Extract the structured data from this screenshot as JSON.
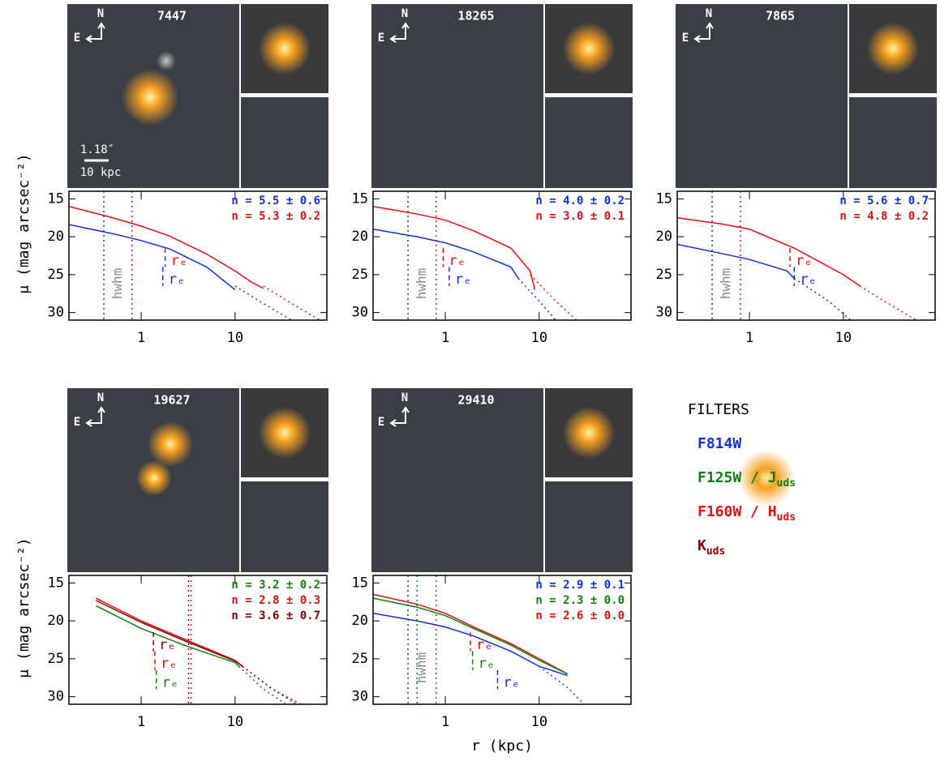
{
  "chart_data": [
    {
      "type": "line",
      "id": "7447",
      "north": "N",
      "east": "E",
      "scale_bar": [
        "1.18″",
        "10 kpc"
      ],
      "ylabel": "μ (mag arcsec⁻²)",
      "xlog": true,
      "xlim": [
        0.17,
        95
      ],
      "ylim": [
        31,
        14
      ],
      "xticks": [
        1,
        10
      ],
      "yticks": [
        15,
        20,
        25,
        30
      ],
      "series": [
        {
          "color": "#e01010",
          "style": "solid",
          "x": [
            0.17,
            0.5,
            1,
            2,
            5,
            10,
            15,
            20
          ],
          "values": [
            16,
            17.5,
            18.6,
            19.9,
            22.3,
            24.5,
            26,
            26.8
          ]
        },
        {
          "color": "#e01010",
          "style": "dotted",
          "x": [
            20,
            40,
            80
          ],
          "values": [
            26.5,
            28.8,
            31
          ]
        },
        {
          "color": "#1030e0",
          "style": "solid",
          "x": [
            0.17,
            0.5,
            1,
            2,
            5,
            10
          ],
          "values": [
            18.4,
            19.6,
            20.5,
            21.6,
            24,
            27
          ]
        },
        {
          "color": "#1030e0",
          "style": "dotted",
          "x": [
            10,
            20,
            40
          ],
          "values": [
            26.5,
            28.8,
            31
          ]
        }
      ],
      "hwhm": [
        {
          "color": "#1030e0",
          "x": 0.4
        },
        {
          "color": "#e01010",
          "x": 0.8
        }
      ],
      "hwhm_label": "hwhm",
      "re": [
        {
          "color": "#e01010",
          "x": 1.8,
          "label": "rₑ"
        },
        {
          "color": "#1030e0",
          "x": 1.7,
          "label": "rₑ"
        }
      ],
      "n_labels": [
        {
          "color": "#1030e0",
          "text": "n = 5.5 ± 0.6"
        },
        {
          "color": "#e01010",
          "text": "n = 5.3 ± 0.2"
        }
      ]
    },
    {
      "type": "line",
      "id": "18265",
      "north": "N",
      "east": "E",
      "xlog": true,
      "xlim": [
        0.17,
        95
      ],
      "ylim": [
        31,
        14
      ],
      "xticks": [
        1,
        10
      ],
      "yticks": [
        15,
        20,
        25,
        30
      ],
      "series": [
        {
          "color": "#e01010",
          "style": "solid",
          "x": [
            0.17,
            0.5,
            1,
            2,
            5,
            8,
            9
          ],
          "values": [
            16,
            17,
            17.8,
            19.2,
            21.5,
            24.5,
            27
          ]
        },
        {
          "color": "#e01010",
          "style": "dotted",
          "x": [
            8,
            15,
            25
          ],
          "values": [
            25,
            28.5,
            31
          ]
        },
        {
          "color": "#1030e0",
          "style": "solid",
          "x": [
            0.17,
            0.5,
            1,
            2,
            5,
            6
          ],
          "values": [
            19,
            20,
            20.8,
            22,
            24,
            25.5
          ]
        },
        {
          "color": "#1030e0",
          "style": "dotted",
          "x": [
            6,
            10,
            15
          ],
          "values": [
            25.5,
            28.5,
            31
          ]
        }
      ],
      "hwhm": [
        {
          "color": "#1030e0",
          "x": 0.4
        },
        {
          "color": "#e01010",
          "x": 0.8
        }
      ],
      "hwhm_label": "hwhm",
      "re": [
        {
          "color": "#e01010",
          "x": 0.95,
          "label": "rₑ"
        },
        {
          "color": "#1030e0",
          "x": 1.1,
          "label": "rₑ"
        }
      ],
      "n_labels": [
        {
          "color": "#1030e0",
          "text": "n = 4.0 ± 0.2"
        },
        {
          "color": "#e01010",
          "text": "n = 3.0 ± 0.1"
        }
      ]
    },
    {
      "type": "line",
      "id": "7865",
      "north": "N",
      "east": "E",
      "xlog": true,
      "xlim": [
        0.17,
        95
      ],
      "ylim": [
        31,
        14
      ],
      "xticks": [
        1,
        10
      ],
      "yticks": [
        15,
        20,
        25,
        30
      ],
      "series": [
        {
          "color": "#e01010",
          "style": "solid",
          "x": [
            0.17,
            0.5,
            1,
            3,
            10,
            15
          ],
          "values": [
            17.5,
            18.3,
            19,
            21.5,
            25,
            26.5
          ]
        },
        {
          "color": "#e01010",
          "style": "dotted",
          "x": [
            15,
            30,
            60
          ],
          "values": [
            26.5,
            28.8,
            31
          ]
        },
        {
          "color": "#1030e0",
          "style": "solid",
          "x": [
            0.17,
            0.5,
            1,
            2.5,
            3
          ],
          "values": [
            21,
            22.2,
            23,
            24.5,
            25.5
          ]
        },
        {
          "color": "#1030e0",
          "style": "dotted",
          "x": [
            3,
            7,
            12
          ],
          "values": [
            25.5,
            28.5,
            31
          ]
        }
      ],
      "hwhm": [
        {
          "color": "#1030e0",
          "x": 0.4
        },
        {
          "color": "#e01010",
          "x": 0.8
        }
      ],
      "hwhm_label": "hwhm",
      "re": [
        {
          "color": "#e01010",
          "x": 2.7,
          "label": "rₑ"
        },
        {
          "color": "#1030e0",
          "x": 3.0,
          "label": "rₑ"
        }
      ],
      "n_labels": [
        {
          "color": "#1030e0",
          "text": "n = 5.6 ± 0.7"
        },
        {
          "color": "#e01010",
          "text": "n = 4.8 ± 0.2"
        }
      ]
    },
    {
      "type": "line",
      "id": "19627",
      "north": "N",
      "east": "E",
      "ylabel": "μ (mag arcsec⁻²)",
      "xlog": true,
      "xlim": [
        0.17,
        95
      ],
      "ylim": [
        31,
        14
      ],
      "xticks": [
        1,
        10
      ],
      "yticks": [
        15,
        20,
        25,
        30
      ],
      "series": [
        {
          "color": "#e01010",
          "style": "solid",
          "x": [
            0.33,
            1,
            3,
            10,
            12
          ],
          "values": [
            17,
            20,
            22.5,
            25.2,
            26
          ]
        },
        {
          "color": "#e01010",
          "style": "dotted",
          "x": [
            12,
            25,
            45
          ],
          "values": [
            26,
            29,
            31
          ]
        },
        {
          "color": "#8b0000",
          "style": "solid",
          "x": [
            0.33,
            1,
            3,
            10,
            12
          ],
          "values": [
            17.3,
            20.2,
            22.7,
            25.3,
            26
          ]
        },
        {
          "color": "#8b0000",
          "style": "dotted",
          "x": [
            12,
            25,
            50
          ],
          "values": [
            26,
            29,
            31
          ]
        },
        {
          "color": "#108010",
          "style": "solid",
          "x": [
            0.33,
            1,
            3,
            10,
            11
          ],
          "values": [
            18,
            21,
            23.3,
            25.5,
            26
          ]
        },
        {
          "color": "#108010",
          "style": "dotted",
          "x": [
            11,
            20,
            35
          ],
          "values": [
            26,
            29,
            31
          ]
        }
      ],
      "hwhm": [
        {
          "color": "#8b0000",
          "x": 3.2
        },
        {
          "color": "#e01010",
          "x": 3.4
        }
      ],
      "re": [
        {
          "color": "#8b0000",
          "x": 1.35,
          "label": "rₑ"
        },
        {
          "color": "#e01010",
          "x": 1.4,
          "label": "rₑ"
        },
        {
          "color": "#108010",
          "x": 1.45,
          "label": "rₑ"
        }
      ],
      "n_labels": [
        {
          "color": "#108010",
          "text": "n = 3.2 ± 0.2"
        },
        {
          "color": "#e01010",
          "text": "n = 2.8 ± 0.3"
        },
        {
          "color": "#8b0000",
          "text": "n = 3.6 ± 0.7"
        }
      ]
    },
    {
      "type": "line",
      "id": "29410",
      "north": "N",
      "east": "E",
      "xlabel": "r (kpc)",
      "xlog": true,
      "xlim": [
        0.17,
        95
      ],
      "ylim": [
        31,
        14
      ],
      "xticks": [
        1,
        10
      ],
      "yticks": [
        15,
        20,
        25,
        30
      ],
      "series": [
        {
          "color": "#e01010",
          "style": "solid",
          "x": [
            0.17,
            0.5,
            1,
            2,
            5,
            10,
            20
          ],
          "values": [
            16.5,
            17.8,
            19,
            20.8,
            23,
            25,
            27
          ]
        },
        {
          "color": "#108010",
          "style": "solid",
          "x": [
            0.17,
            0.5,
            1,
            2,
            5,
            10,
            20
          ],
          "values": [
            17,
            18.2,
            19.3,
            21,
            23.2,
            25.2,
            27
          ]
        },
        {
          "color": "#1030e0",
          "style": "solid",
          "x": [
            0.17,
            0.5,
            1,
            2,
            5,
            10,
            20
          ],
          "values": [
            19,
            20,
            20.8,
            22,
            24,
            26,
            27.2
          ]
        },
        {
          "color": "#1030e0",
          "style": "dotted",
          "x": [
            10,
            20,
            30
          ],
          "values": [
            26,
            28.8,
            31
          ]
        }
      ],
      "hwhm": [
        {
          "color": "#1030e0",
          "x": 0.4
        },
        {
          "color": "#108010",
          "x": 0.5
        },
        {
          "color": "#e01010",
          "x": 0.8
        }
      ],
      "hwhm_label": "hwhm",
      "re": [
        {
          "color": "#e01010",
          "x": 1.85,
          "label": "rₑ"
        },
        {
          "color": "#108010",
          "x": 1.95,
          "label": "rₑ"
        },
        {
          "color": "#1030e0",
          "x": 3.6,
          "label": "rₑ"
        }
      ],
      "n_labels": [
        {
          "color": "#1030e0",
          "text": "n = 2.9 ± 0.1"
        },
        {
          "color": "#108010",
          "text": "n = 2.3 ± 0.0"
        },
        {
          "color": "#e01010",
          "text": "n = 2.6 ± 0.0"
        }
      ]
    }
  ],
  "filters": {
    "title": "FILTERS",
    "items": [
      {
        "text": "F814W",
        "color": "#1030e0"
      },
      {
        "text": "F125W / J",
        "sub": "uds",
        "color": "#108010"
      },
      {
        "text": "F160W / H",
        "sub": "uds",
        "color": "#e01010"
      },
      {
        "text": "K",
        "sub": "uds",
        "color": "#8b0000"
      }
    ]
  }
}
